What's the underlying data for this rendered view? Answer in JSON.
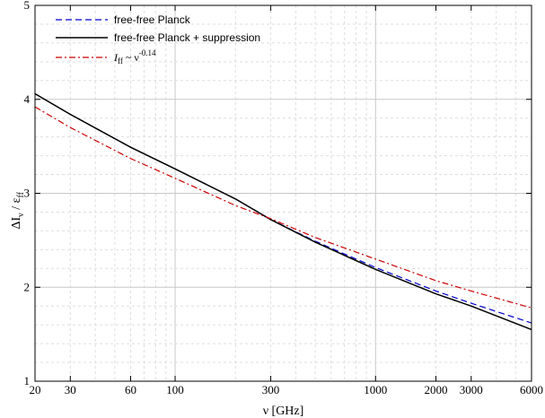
{
  "chart_data": {
    "type": "line",
    "xlabel": "ν  [GHz]",
    "ylabel": {
      "main": "ΔI",
      "sub1": "ν",
      "mid": " / ε",
      "sub2": "ff"
    },
    "xscale": "log",
    "xlim": [
      20,
      6000
    ],
    "ylim": [
      1,
      5
    ],
    "grid": true,
    "legend_position": "top-left",
    "x_ticks": [
      20,
      30,
      60,
      100,
      300,
      1000,
      2000,
      3000,
      6000
    ],
    "x_tick_labels": [
      "20",
      "30",
      "60",
      "100",
      "300",
      "1000",
      "2000",
      "3000",
      "6000"
    ],
    "y_ticks": [
      1,
      2,
      3,
      4,
      5
    ],
    "y_tick_labels": [
      "1",
      "2",
      "3",
      "4",
      "5"
    ],
    "series": [
      {
        "name": "free-free Planck",
        "color": "#0000cc",
        "style": "dashed",
        "x": [
          20,
          30,
          60,
          100,
          200,
          300,
          500,
          1000,
          2000,
          3000,
          6000
        ],
        "y": [
          4.06,
          3.84,
          3.49,
          3.26,
          2.94,
          2.72,
          2.49,
          2.21,
          1.96,
          1.83,
          1.62
        ]
      },
      {
        "name": "free-free Planck + suppression",
        "color": "#000000",
        "style": "solid",
        "x": [
          20,
          30,
          60,
          100,
          200,
          300,
          500,
          1000,
          2000,
          3000,
          6000
        ],
        "y": [
          4.06,
          3.84,
          3.49,
          3.26,
          2.94,
          2.72,
          2.48,
          2.19,
          1.93,
          1.8,
          1.55
        ]
      },
      {
        "name": "I_ff ~ ν^-0.14",
        "name_parts": {
          "I": "I",
          "sub": "ff",
          "tilde": " ~ ν",
          "sup": "-0.14"
        },
        "color": "#cc0000",
        "style": "dashdot",
        "x": [
          20,
          30,
          60,
          100,
          200,
          300,
          500,
          1000,
          2000,
          3000,
          6000
        ],
        "y": [
          3.92,
          3.7,
          3.37,
          3.16,
          2.87,
          2.73,
          2.53,
          2.3,
          2.07,
          1.96,
          1.78
        ]
      }
    ]
  }
}
